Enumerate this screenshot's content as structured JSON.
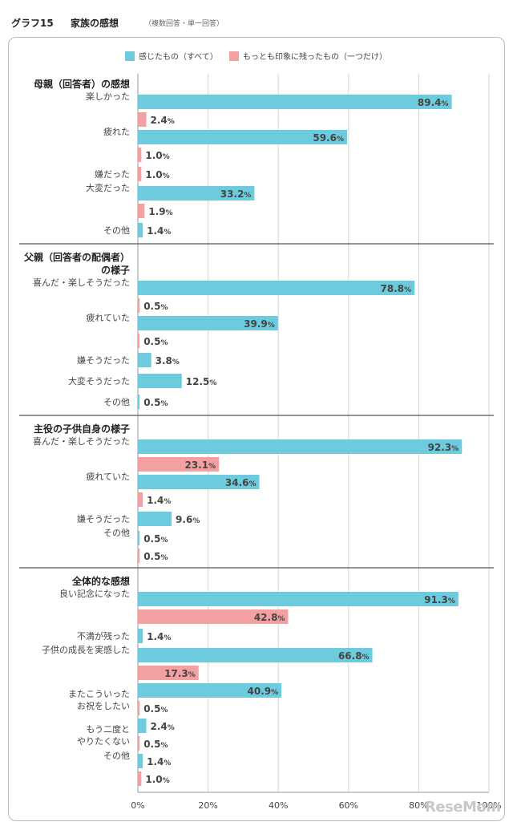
{
  "header": {
    "figure_no": "グラフ15",
    "title": "家族の感想",
    "note": "（複数回答・単一回答）"
  },
  "colors": {
    "all": "#6ecbdd",
    "most": "#f2a0a2",
    "grid": "#d6d6d6",
    "axis": "#999999"
  },
  "chart_data": {
    "type": "bar",
    "orientation": "horizontal",
    "xlim": [
      0,
      100
    ],
    "x_ticks": [
      "0%",
      "20%",
      "40%",
      "60%",
      "80%",
      "100%"
    ],
    "grid": true,
    "legend_position": "top",
    "series": [
      {
        "key": "all",
        "name": "感じたもの（すべて）"
      },
      {
        "key": "most",
        "name": "もっとも印象に残ったもの（一つだけ）"
      }
    ],
    "groups": [
      {
        "title": [
          "母親（回答者）の感想"
        ],
        "items": [
          {
            "label": [
              "楽しかった"
            ],
            "all": 89.4,
            "most": 2.4
          },
          {
            "label": [
              "疲れた"
            ],
            "all": 59.6,
            "most": 1.0
          },
          {
            "label": [
              "嫌だった"
            ],
            "all": null,
            "most": 1.0
          },
          {
            "label": [
              "大変だった"
            ],
            "all": 33.2,
            "most": 1.9
          },
          {
            "label": [
              "その他"
            ],
            "all": 1.4,
            "most": null
          }
        ]
      },
      {
        "title": [
          "父親（回答者の配偶者）",
          "の様子"
        ],
        "items": [
          {
            "label": [
              "喜んだ・楽しそうだった"
            ],
            "all": 78.8,
            "most": 0.5
          },
          {
            "label": [
              "疲れていた"
            ],
            "all": 39.9,
            "most": 0.5
          },
          {
            "label": [
              "嫌そうだった"
            ],
            "all": 3.8,
            "most": null
          },
          {
            "label": [
              "大変そうだった"
            ],
            "all": 12.5,
            "most": null
          },
          {
            "label": [
              "その他"
            ],
            "all": 0.5,
            "most": null
          }
        ]
      },
      {
        "title": [
          "主役の子供自身の様子"
        ],
        "items": [
          {
            "label": [
              "喜んだ・楽しそうだった"
            ],
            "all": 92.3,
            "most": 23.1
          },
          {
            "label": [
              "疲れていた"
            ],
            "all": 34.6,
            "most": 1.4
          },
          {
            "label": [
              "嫌そうだった"
            ],
            "all": 9.6,
            "most": null
          },
          {
            "label": [
              "その他"
            ],
            "all": 0.5,
            "most": 0.5
          }
        ]
      },
      {
        "title": [
          "全体的な感想"
        ],
        "items": [
          {
            "label": [
              "良い記念になった"
            ],
            "all": 91.3,
            "most": 42.8
          },
          {
            "label": [
              "不満が残った"
            ],
            "all": 1.4,
            "most": null
          },
          {
            "label": [
              "子供の成長を実感した"
            ],
            "all": 66.8,
            "most": 17.3
          },
          {
            "label": [
              "またこういった",
              "お祝をしたい"
            ],
            "all": 40.9,
            "most": 0.5
          },
          {
            "label": [
              "もう二度と",
              "やりたくない"
            ],
            "all": 2.4,
            "most": 0.5
          },
          {
            "label": [
              "その他"
            ],
            "all": 1.4,
            "most": 1.0
          }
        ]
      }
    ]
  },
  "logo": {
    "text": "ReseMom"
  }
}
